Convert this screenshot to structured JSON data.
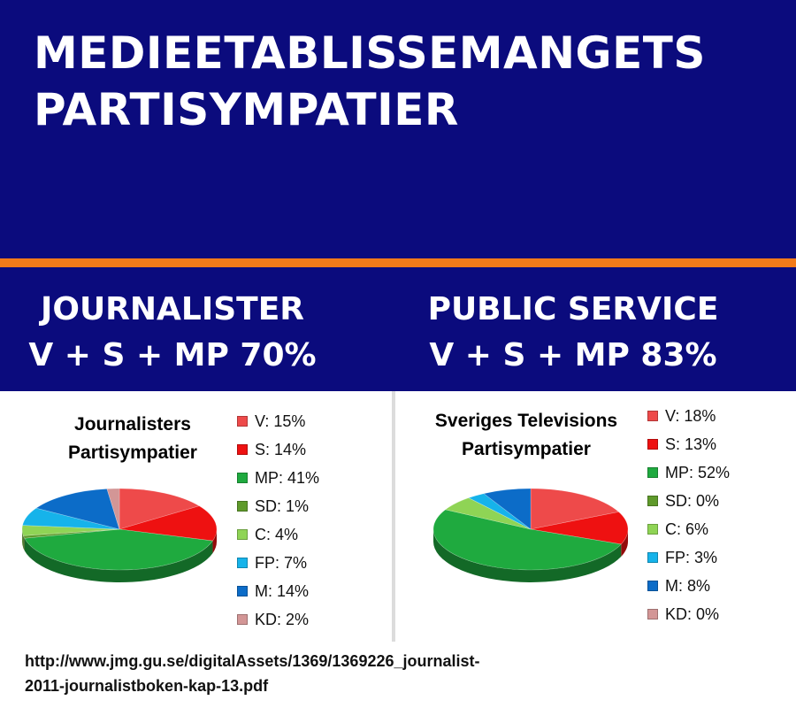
{
  "header": {
    "title_line1": "MEDIEETABLISSEMANGETS",
    "title_line2": "PARTISYMPATIER"
  },
  "subheaders": {
    "left_line1": "JOURNALISTER",
    "left_line2": "V + S + MP 70%",
    "right_line1": "PUBLIC SERVICE",
    "right_line2": "V + S + MP 83%"
  },
  "colors": {
    "header_bg": "#0b0b7d",
    "accent_orange": "#f27a1a",
    "V": "#ee4a4a",
    "S": "#ee1111",
    "MP": "#1faa3f",
    "SD": "#5f9a2b",
    "C": "#8fd455",
    "FP": "#16b3ea",
    "M": "#0c6cc8",
    "KD": "#d39696"
  },
  "chart_data": [
    {
      "type": "pie",
      "title_line1": "Journalisters",
      "title_line2": "Partisympatier",
      "categories": [
        "V",
        "S",
        "MP",
        "SD",
        "C",
        "FP",
        "M",
        "KD"
      ],
      "values": [
        15,
        14,
        41,
        1,
        4,
        7,
        14,
        2
      ],
      "legend_labels": [
        "V: 15%",
        "S: 14%",
        "MP: 41%",
        "SD: 1%",
        "C: 4%",
        "FP: 7%",
        "M: 14%",
        "KD: 2%"
      ],
      "legend": "right"
    },
    {
      "type": "pie",
      "title_line1": "Sveriges Televisions",
      "title_line2": "Partisympatier",
      "categories": [
        "V",
        "S",
        "MP",
        "SD",
        "C",
        "FP",
        "M",
        "KD"
      ],
      "values": [
        18,
        13,
        52,
        0,
        6,
        3,
        8,
        0
      ],
      "legend_labels": [
        "V: 18%",
        "S: 13%",
        "MP: 52%",
        "SD: 0%",
        "C: 6%",
        "FP: 3%",
        "M: 8%",
        "KD: 0%"
      ],
      "legend": "right"
    }
  ],
  "source": {
    "line1": "http://www.jmg.gu.se/digitalAssets/1369/1369226_journalist-",
    "line2": "2011-journalistboken-kap-13.pdf"
  }
}
